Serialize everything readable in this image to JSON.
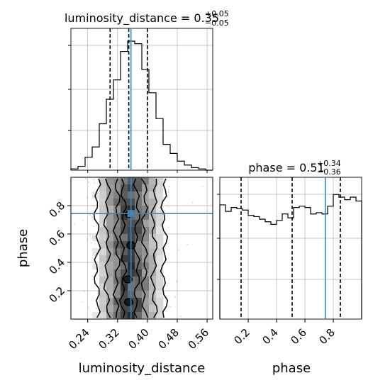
{
  "chart_data": {
    "type": "corner",
    "parameters": [
      "luminosity_distance",
      "phase"
    ],
    "truths": {
      "luminosity_distance": 0.356,
      "phase": 0.744
    },
    "titles": {
      "luminosity_distance": {
        "prefix": "luminosity_distance = 0.35",
        "plus": "+0.05",
        "minus": "−0.05"
      },
      "phase": {
        "prefix": "phase = 0.51",
        "plus": "+0.34",
        "minus": "−0.36"
      }
    },
    "quantiles": {
      "luminosity_distance": [
        0.3,
        0.35,
        0.4
      ],
      "phase": [
        0.15,
        0.51,
        0.85
      ]
    },
    "axes": {
      "luminosity_distance": {
        "label": "luminosity_distance",
        "range": [
          0.195,
          0.575
        ],
        "ticks": [
          0.24,
          0.32,
          0.4,
          0.48,
          0.56
        ],
        "tick_labels": [
          "0.24",
          "0.32",
          "0.40",
          "0.48",
          "0.56"
        ]
      },
      "phase": {
        "label": "phase",
        "range": [
          0.0,
          1.0
        ],
        "ticks": [
          0.2,
          0.4,
          0.6,
          0.8
        ],
        "tick_labels": [
          "0.2",
          "0.4",
          "0.6",
          "0.8"
        ]
      }
    },
    "hist_luminosity_distance": {
      "bin_start": 0.195,
      "bin_width": 0.019,
      "counts": [
        0.01,
        0.03,
        0.1,
        0.18,
        0.36,
        0.55,
        0.7,
        0.92,
        1.0,
        0.98,
        0.78,
        0.6,
        0.4,
        0.2,
        0.13,
        0.07,
        0.04,
        0.02,
        0.01,
        0.0
      ]
    },
    "hist_phase": {
      "bin_start": 0.0,
      "bin_width": 0.04,
      "counts": [
        0.88,
        0.83,
        0.86,
        0.85,
        0.84,
        0.8,
        0.79,
        0.77,
        0.75,
        0.73,
        0.76,
        0.81,
        0.78,
        0.86,
        0.87,
        0.86,
        0.81,
        0.82,
        0.81,
        0.87,
        0.96,
        0.94,
        0.92,
        0.94,
        0.91
      ]
    },
    "grid": true
  }
}
